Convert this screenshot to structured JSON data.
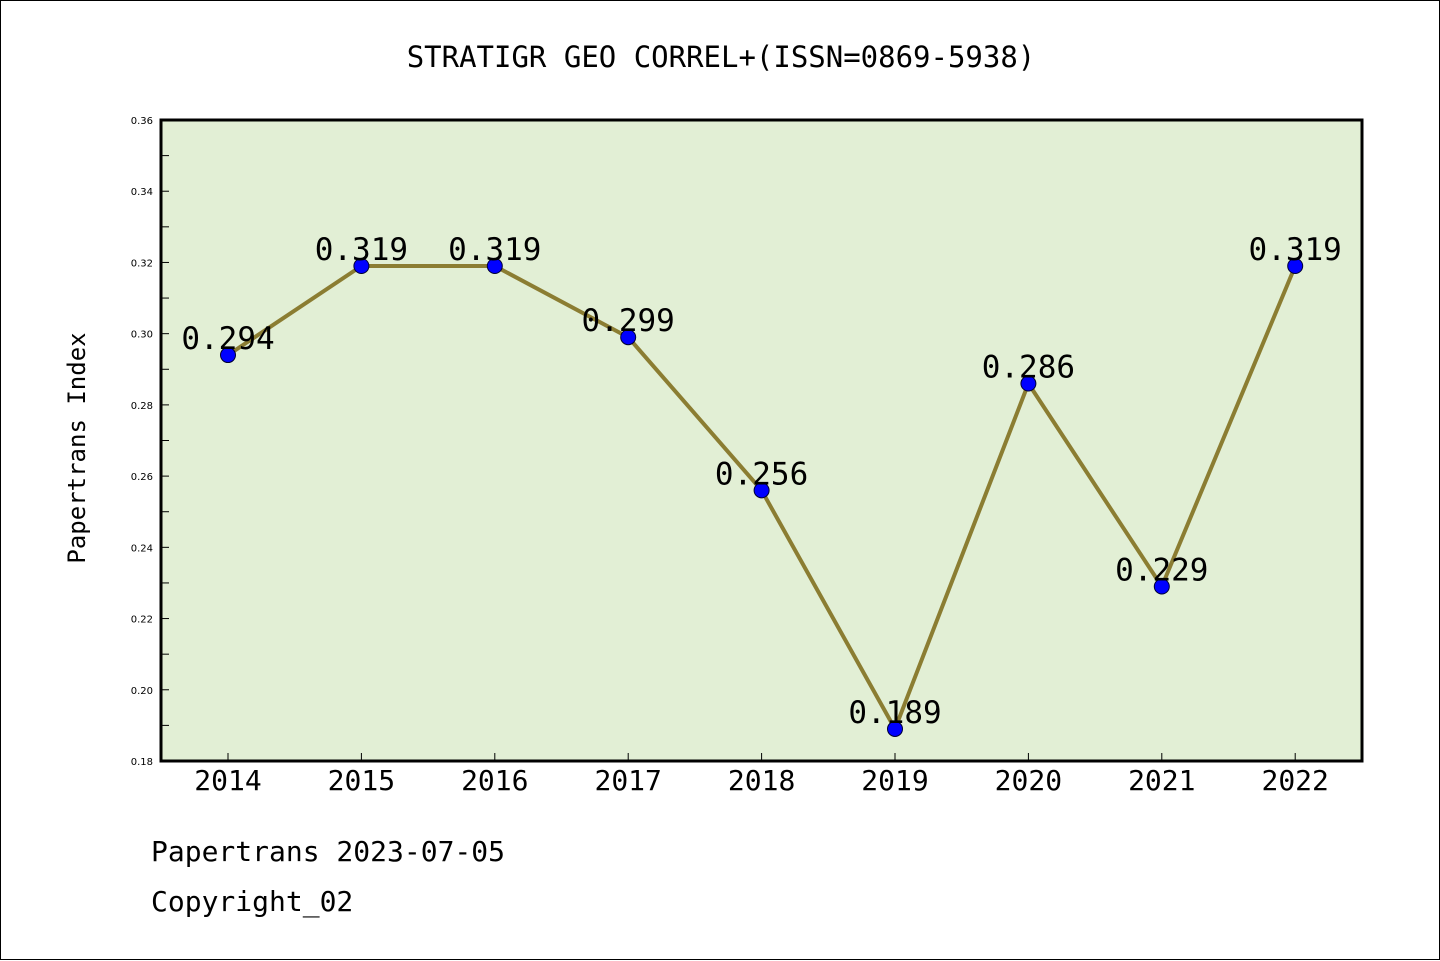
{
  "chart_data": {
    "type": "line",
    "title": "STRATIGR GEO CORREL+(ISSN=0869-5938)",
    "xlabel": "",
    "ylabel": "Papertrans Index",
    "categories": [
      "2014",
      "2015",
      "2016",
      "2017",
      "2018",
      "2019",
      "2020",
      "2021",
      "2022"
    ],
    "values": [
      0.294,
      0.319,
      0.319,
      0.299,
      0.256,
      0.189,
      0.286,
      0.229,
      0.319
    ],
    "data_labels": [
      "0.294",
      "0.319",
      "0.319",
      "0.299",
      "0.256",
      "0.189",
      "0.286",
      "0.229",
      "0.319"
    ],
    "ylim": [
      0.18,
      0.36
    ],
    "yticks": [
      "0.18",
      "0.20",
      "0.22",
      "0.24",
      "0.26",
      "0.28",
      "0.30",
      "0.32",
      "0.34",
      "0.36"
    ],
    "grid": false,
    "legend": "none",
    "colors": {
      "plot_background": "#e2efd5",
      "line": "#8b7d32",
      "marker": "#0000ff"
    }
  },
  "footer": {
    "line1": "Papertrans 2023-07-05",
    "line2": "Copyright_02"
  }
}
